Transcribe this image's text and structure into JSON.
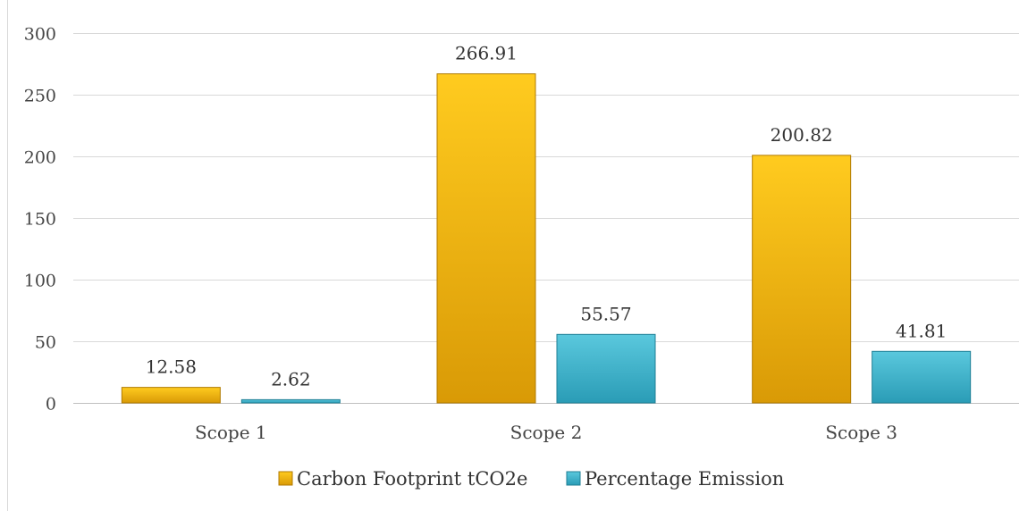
{
  "chart_data": {
    "type": "bar",
    "title": "",
    "xlabel": "",
    "ylabel": "",
    "categories": [
      "Scope 1",
      "Scope 2",
      "Scope 3"
    ],
    "series": [
      {
        "name": "Carbon Footprint tCO2e",
        "values": [
          12.58,
          266.91,
          200.82
        ],
        "data_labels": [
          "12.58",
          "266.91",
          "200.82"
        ],
        "color": "#F2B705"
      },
      {
        "name": "Percentage Emission",
        "values": [
          2.62,
          55.57,
          41.81
        ],
        "data_labels": [
          "2.62",
          "55.57",
          "41.81"
        ],
        "color": "#3CB4CC"
      }
    ],
    "ylim": [
      0,
      300
    ],
    "yticks": [
      0,
      50,
      100,
      150,
      200,
      250,
      300
    ],
    "ytick_labels": [
      "0",
      "50",
      "100",
      "150",
      "200",
      "250",
      "300"
    ],
    "grid": true,
    "legend_position": "bottom"
  }
}
